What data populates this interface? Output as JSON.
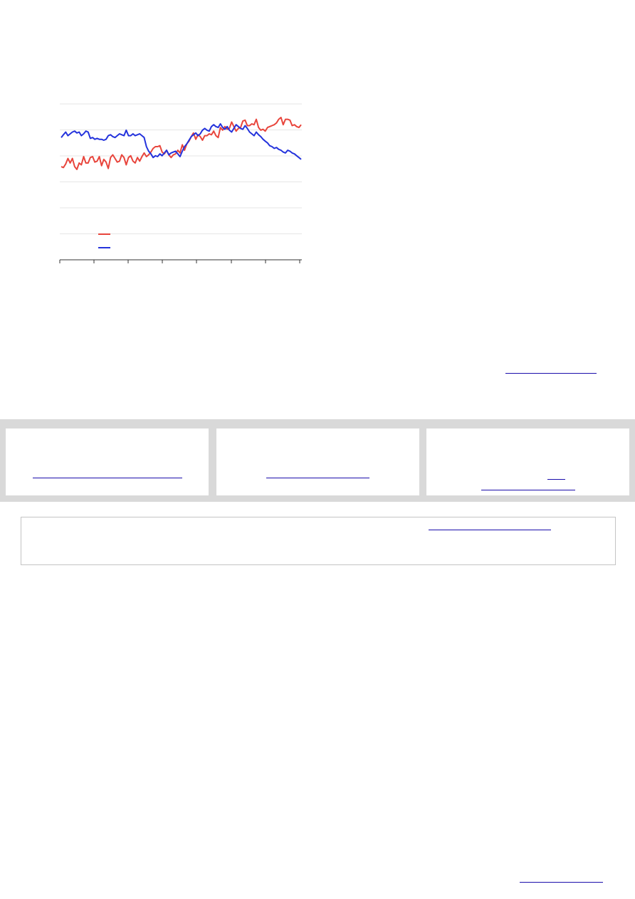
{
  "chart_data": {
    "type": "line",
    "title": "",
    "xlabel": "",
    "ylabel": "",
    "grid": true,
    "legend_position": "bottom-left",
    "x_tick_count": 8,
    "y_gridline_count": 6,
    "series": [
      {
        "name": "",
        "color": "#e8453c",
        "values": [
          46,
          45,
          49,
          55,
          50,
          55,
          46,
          43,
          50,
          48,
          57,
          50,
          50,
          56,
          57,
          51,
          52,
          57,
          47,
          54,
          51,
          44,
          56,
          59,
          55,
          51,
          52,
          59,
          56,
          48,
          56,
          58,
          52,
          50,
          56,
          52,
          57,
          61,
          57,
          59,
          62,
          66,
          68,
          68,
          69,
          62,
          60,
          64,
          59,
          56,
          59,
          60,
          64,
          61,
          70,
          64,
          71,
          74,
          79,
          83,
          76,
          81,
          79,
          75,
          80,
          80,
          82,
          81,
          85,
          80,
          78,
          89,
          86,
          90,
          87,
          88,
          95,
          90,
          85,
          88,
          89,
          96,
          97,
          91,
          91,
          93,
          92,
          98,
          89,
          86,
          87,
          85,
          89,
          90,
          91,
          92,
          94,
          98,
          100,
          92,
          98,
          98,
          97,
          91,
          92,
          90,
          89,
          92
        ]
      },
      {
        "name": "",
        "color": "#2433dc",
        "values": [
          78,
          81,
          84,
          80,
          82,
          84,
          85,
          83,
          84,
          80,
          82,
          85,
          84,
          77,
          78,
          76,
          77,
          76,
          76,
          75,
          76,
          80,
          81,
          79,
          78,
          80,
          82,
          81,
          80,
          86,
          80,
          80,
          82,
          80,
          81,
          82,
          80,
          78,
          68,
          63,
          60,
          56,
          58,
          57,
          60,
          58,
          61,
          64,
          59,
          61,
          62,
          63,
          60,
          57,
          63,
          68,
          71,
          75,
          79,
          81,
          83,
          80,
          82,
          86,
          88,
          86,
          85,
          90,
          92,
          90,
          89,
          93,
          89,
          87,
          90,
          86,
          84,
          88,
          92,
          90,
          88,
          87,
          91,
          88,
          84,
          82,
          80,
          84,
          81,
          79,
          76,
          74,
          72,
          69,
          68,
          66,
          67,
          65,
          64,
          62,
          61,
          64,
          63,
          61,
          60,
          58,
          56,
          54
        ]
      }
    ]
  },
  "layout_note": ""
}
